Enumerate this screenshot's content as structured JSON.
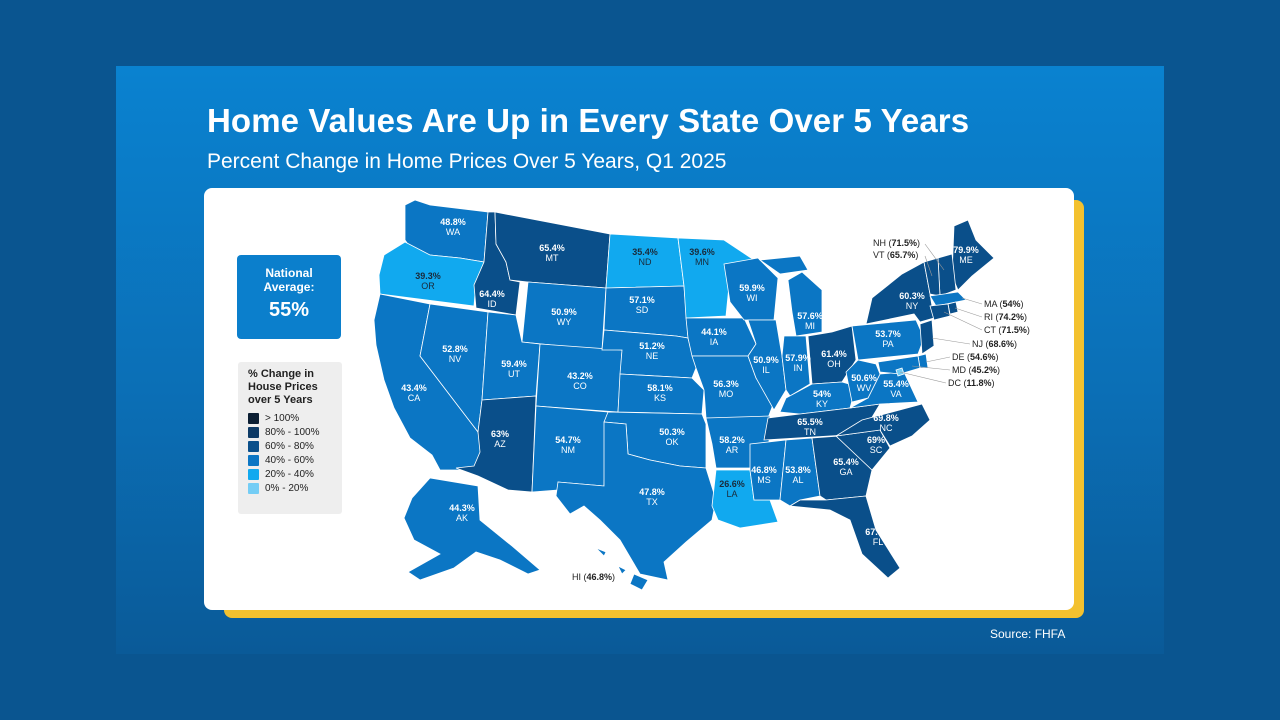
{
  "title": "Home Values Are Up in Every State Over 5 Years",
  "subtitle": "Percent Change in Home Prices Over 5 Years, Q1 2025",
  "national": {
    "label_line1": "National",
    "label_line2": "Average:",
    "value": "55%"
  },
  "legend": {
    "title_line1": "% Change in",
    "title_line2": "House Prices",
    "title_line3": "over 5 Years",
    "items": [
      {
        "label": "> 100%",
        "color": "#0b1e33"
      },
      {
        "label": "80% - 100%",
        "color": "#0d3a66"
      },
      {
        "label": "60% - 80%",
        "color": "#0a4f8a"
      },
      {
        "label": "40% - 60%",
        "color": "#0b76c4"
      },
      {
        "label": "20% - 40%",
        "color": "#11a9ef"
      },
      {
        "label": "0% - 20%",
        "color": "#74cdf5"
      }
    ]
  },
  "source": "Source: FHFA",
  "states": [
    {
      "abbr": "WA",
      "pct": "48.8%",
      "tier": 3
    },
    {
      "abbr": "OR",
      "pct": "39.3%",
      "tier": 4
    },
    {
      "abbr": "CA",
      "pct": "43.4%",
      "tier": 3
    },
    {
      "abbr": "NV",
      "pct": "52.8%",
      "tier": 3
    },
    {
      "abbr": "ID",
      "pct": "64.4%",
      "tier": 2
    },
    {
      "abbr": "MT",
      "pct": "65.4%",
      "tier": 2
    },
    {
      "abbr": "WY",
      "pct": "50.9%",
      "tier": 3
    },
    {
      "abbr": "UT",
      "pct": "59.4%",
      "tier": 3
    },
    {
      "abbr": "AZ",
      "pct": "63%",
      "tier": 2
    },
    {
      "abbr": "CO",
      "pct": "43.2%",
      "tier": 3
    },
    {
      "abbr": "NM",
      "pct": "54.7%",
      "tier": 3
    },
    {
      "abbr": "ND",
      "pct": "35.4%",
      "tier": 4
    },
    {
      "abbr": "SD",
      "pct": "57.1%",
      "tier": 3
    },
    {
      "abbr": "NE",
      "pct": "51.2%",
      "tier": 3
    },
    {
      "abbr": "KS",
      "pct": "58.1%",
      "tier": 3
    },
    {
      "abbr": "OK",
      "pct": "50.3%",
      "tier": 3
    },
    {
      "abbr": "TX",
      "pct": "47.8%",
      "tier": 3
    },
    {
      "abbr": "MN",
      "pct": "39.6%",
      "tier": 4
    },
    {
      "abbr": "IA",
      "pct": "44.1%",
      "tier": 3
    },
    {
      "abbr": "MO",
      "pct": "56.3%",
      "tier": 3
    },
    {
      "abbr": "AR",
      "pct": "58.2%",
      "tier": 3
    },
    {
      "abbr": "LA",
      "pct": "26.6%",
      "tier": 4
    },
    {
      "abbr": "WI",
      "pct": "59.9%",
      "tier": 3
    },
    {
      "abbr": "IL",
      "pct": "50.9%",
      "tier": 3
    },
    {
      "abbr": "MI",
      "pct": "57.6%",
      "tier": 3
    },
    {
      "abbr": "IN",
      "pct": "57.9%",
      "tier": 3
    },
    {
      "abbr": "OH",
      "pct": "61.4%",
      "tier": 2
    },
    {
      "abbr": "KY",
      "pct": "54%",
      "tier": 3
    },
    {
      "abbr": "TN",
      "pct": "65.5%",
      "tier": 2
    },
    {
      "abbr": "MS",
      "pct": "46.8%",
      "tier": 3
    },
    {
      "abbr": "AL",
      "pct": "53.8%",
      "tier": 3
    },
    {
      "abbr": "GA",
      "pct": "65.4%",
      "tier": 2
    },
    {
      "abbr": "FL",
      "pct": "67.6%",
      "tier": 2
    },
    {
      "abbr": "SC",
      "pct": "69%",
      "tier": 2
    },
    {
      "abbr": "NC",
      "pct": "69.8%",
      "tier": 2
    },
    {
      "abbr": "VA",
      "pct": "55.4%",
      "tier": 3
    },
    {
      "abbr": "WV",
      "pct": "50.6%",
      "tier": 3
    },
    {
      "abbr": "PA",
      "pct": "53.7%",
      "tier": 3
    },
    {
      "abbr": "NY",
      "pct": "60.3%",
      "tier": 2
    },
    {
      "abbr": "ME",
      "pct": "79.9%",
      "tier": 2
    },
    {
      "abbr": "AK",
      "pct": "44.3%",
      "tier": 3
    },
    {
      "abbr": "NH",
      "pct": "71.5%",
      "tier": 2
    },
    {
      "abbr": "VT",
      "pct": "65.7%",
      "tier": 2
    },
    {
      "abbr": "MA",
      "pct": "54%",
      "tier": 3
    },
    {
      "abbr": "RI",
      "pct": "74.2%",
      "tier": 2
    },
    {
      "abbr": "CT",
      "pct": "71.5%",
      "tier": 2
    },
    {
      "abbr": "NJ",
      "pct": "68.6%",
      "tier": 2
    },
    {
      "abbr": "DE",
      "pct": "54.6%",
      "tier": 3
    },
    {
      "abbr": "MD",
      "pct": "45.2%",
      "tier": 3
    },
    {
      "abbr": "DC",
      "pct": "11.8%",
      "tier": 5
    },
    {
      "abbr": "HI",
      "pct": "46.8%",
      "tier": 3
    }
  ]
}
